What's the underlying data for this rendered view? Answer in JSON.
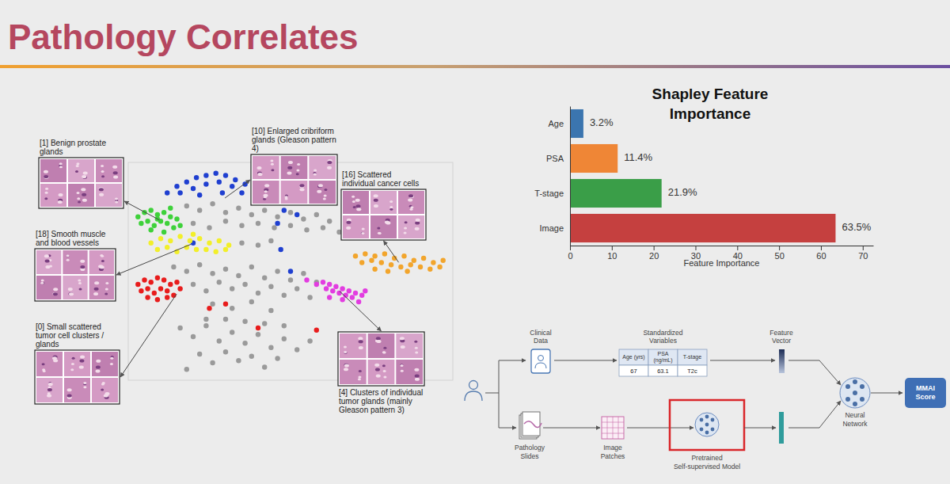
{
  "title": "Pathology Correlates",
  "chart_data": [
    {
      "type": "scatter",
      "marker": "circle",
      "tick_labels": false,
      "xlim": [
        0,
        100
      ],
      "ylim": [
        0,
        100
      ],
      "series": [
        {
          "color": "#9a9a9a",
          "x": [
            18,
            22,
            26,
            30,
            34,
            38,
            42,
            46,
            50,
            54,
            58,
            62,
            20,
            25,
            30,
            35,
            40,
            45,
            50,
            55,
            60,
            65,
            35,
            40,
            44,
            14,
            18,
            22,
            26,
            30,
            34,
            38,
            42,
            46,
            50,
            54,
            58,
            20,
            24,
            28,
            32,
            36,
            40,
            44,
            48,
            52,
            56,
            26,
            32,
            38,
            44,
            16,
            20,
            24,
            28,
            32,
            36,
            40,
            44,
            48,
            52,
            56,
            22,
            26,
            30,
            34,
            38,
            42,
            46,
            18,
            24,
            30,
            36,
            42,
            48
          ],
          "y": [
            80,
            78,
            81,
            77,
            79,
            76,
            78,
            75,
            77,
            74,
            76,
            73,
            72,
            70,
            73,
            71,
            72,
            70,
            71,
            69,
            70,
            68,
            63,
            62,
            64,
            52,
            50,
            53,
            49,
            51,
            48,
            52,
            47,
            50,
            46,
            49,
            45,
            44,
            41,
            45,
            42,
            44,
            40,
            43,
            39,
            42,
            38,
            35,
            33,
            36,
            32,
            24,
            20,
            25,
            18,
            22,
            17,
            21,
            15,
            19,
            14,
            18,
            12,
            8,
            13,
            9,
            11,
            6,
            10,
            5,
            28,
            28,
            27,
            26,
            25
          ]
        },
        {
          "name": "[10] Enlarged cribriform glands (Gleason pattern 4)",
          "color": "#1f3fd0",
          "x": [
            12,
            15,
            18,
            21,
            24,
            27,
            30,
            33,
            36,
            16,
            20,
            24,
            28,
            32,
            35,
            22,
            29,
            48,
            52,
            46,
            50,
            47,
            20
          ],
          "y": [
            86,
            89,
            91,
            93,
            94,
            95,
            94,
            92,
            90,
            86,
            88,
            90,
            91,
            89,
            86,
            85,
            86,
            78,
            76,
            72,
            50,
            60,
            63
          ]
        },
        {
          "name": "[1] Benign prostate glands",
          "color": "#3ed13a",
          "x": [
            3,
            5,
            7,
            9,
            11,
            13,
            15,
            4,
            6,
            8,
            10,
            12,
            14,
            16,
            7,
            11,
            9,
            13
          ],
          "y": [
            75,
            77,
            78,
            76,
            77,
            75,
            74,
            72,
            73,
            71,
            73,
            72,
            70,
            71,
            69,
            68,
            74,
            79
          ]
        },
        {
          "name": "[18] Smooth muscle and blood vessels",
          "color": "#f2ef2a",
          "x": [
            7,
            10,
            13,
            16,
            19,
            22,
            25,
            28,
            31,
            9,
            12,
            15,
            18,
            21,
            24,
            27,
            30,
            20
          ],
          "y": [
            63,
            65,
            64,
            66,
            64,
            65,
            63,
            64,
            62,
            60,
            61,
            59,
            61,
            60,
            60,
            59,
            60,
            67
          ]
        },
        {
          "name": "[0] Small scattered tumor cell clusters / glands",
          "color": "#e81c1c",
          "x": [
            3,
            5,
            7,
            9,
            11,
            13,
            15,
            4,
            6,
            8,
            10,
            12,
            14,
            6,
            9,
            12,
            16,
            30,
            58,
            25,
            40
          ],
          "y": [
            44,
            46,
            45,
            47,
            46,
            44,
            45,
            41,
            42,
            40,
            42,
            41,
            39,
            38,
            37,
            38,
            42,
            35,
            23,
            33,
            24
          ]
        },
        {
          "name": "[4] Clusters of individual tumor glands (mainly Gleason pattern 3)",
          "color": "#e23ce0",
          "x": [
            58,
            60,
            62,
            64,
            66,
            68,
            70,
            72,
            61,
            63,
            65,
            67,
            69,
            62,
            66,
            71,
            73,
            55
          ],
          "y": [
            44,
            45,
            44,
            43,
            42,
            41,
            40,
            39,
            42,
            41,
            40,
            39,
            38,
            38,
            37,
            36,
            41,
            46
          ]
        },
        {
          "name": "[16] Scattered individual cancer cells",
          "color": "#f2a52c",
          "x": [
            70,
            73,
            76,
            79,
            82,
            85,
            88,
            91,
            94,
            97,
            72,
            75,
            78,
            81,
            84,
            87,
            90,
            93,
            96,
            80,
            86,
            76
          ],
          "y": [
            57,
            58,
            57,
            58,
            56,
            57,
            55,
            56,
            54,
            55,
            54,
            55,
            54,
            53,
            52,
            53,
            52,
            51,
            52,
            50,
            50,
            51
          ]
        }
      ]
    },
    {
      "type": "bar",
      "orientation": "horizontal",
      "title": "Shapley Feature Importance",
      "categories": [
        "Age",
        "PSA",
        "T-stage",
        "Image"
      ],
      "values": [
        3.2,
        11.4,
        21.9,
        63.5
      ],
      "value_labels": [
        "3.2%",
        "11.4%",
        "21.9%",
        "63.5%"
      ],
      "colors": [
        "#3b75af",
        "#ef8636",
        "#3a9e48",
        "#c5403f"
      ],
      "xlim": [
        0,
        72.5
      ],
      "xticks": [
        0,
        10,
        20,
        30,
        40,
        50,
        60,
        70
      ],
      "xlabel": "Feature Importance",
      "data_labels": true,
      "grid": false
    }
  ],
  "diagram": {
    "clinical_data": "Clinical Data",
    "standardized_variables": "Standardized Variables",
    "table": {
      "columns": [
        "Age (yrs)",
        "PSA (ng/mL)",
        "T-stage"
      ],
      "rows": [
        [
          67,
          63.1,
          "T2c"
        ]
      ]
    },
    "feature_vector": "Feature Vector",
    "pathology_slides": "Pathology Slides",
    "image_patches": "Image Patches",
    "pretrained_model": "Pretrained Self-supervised Model",
    "neural_network": "Neural Network",
    "output": "MMAI Score"
  }
}
